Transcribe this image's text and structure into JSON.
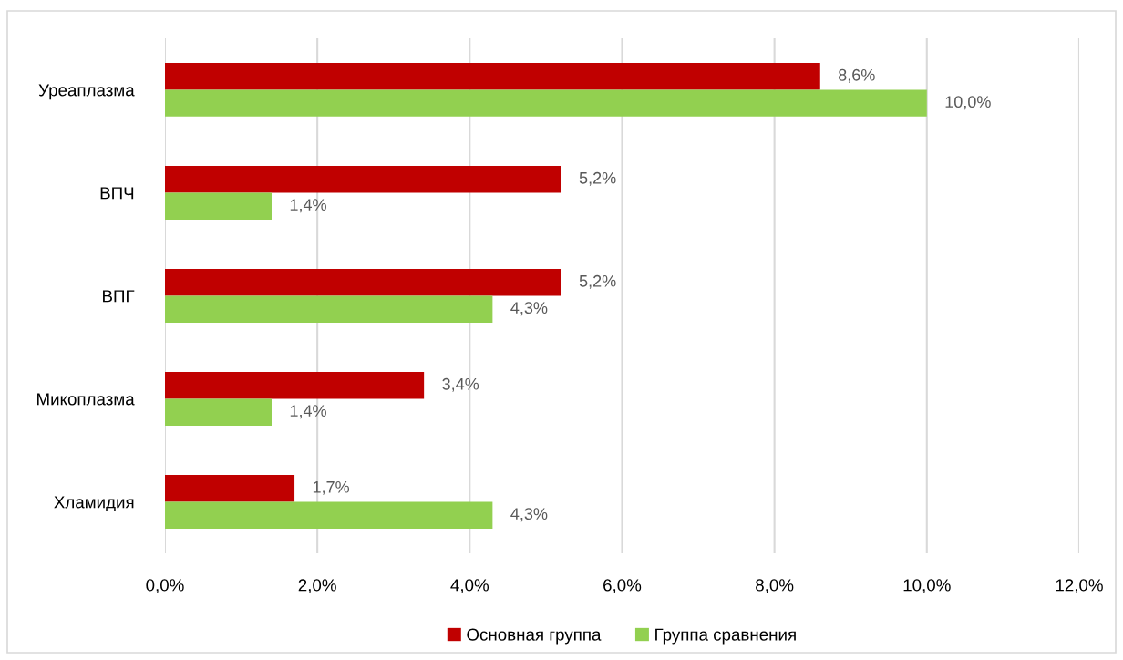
{
  "chart_data": {
    "type": "bar",
    "orientation": "horizontal",
    "categories": [
      "Уреаплазма",
      "ВПЧ",
      "ВПГ",
      "Микоплазма",
      "Хламидия"
    ],
    "series": [
      {
        "name": "Основная группа",
        "color": "#c00000",
        "values": [
          8.6,
          5.2,
          5.2,
          3.4,
          1.7
        ],
        "value_labels": [
          "8,6%",
          "5,2%",
          "5,2%",
          "3,4%",
          "1,7%"
        ]
      },
      {
        "name": "Группа сравнения",
        "color": "#92d050",
        "values": [
          10.0,
          1.4,
          4.3,
          1.4,
          4.3
        ],
        "value_labels": [
          "10,0%",
          "1,4%",
          "4,3%",
          "1,4%",
          "4,3%"
        ]
      }
    ],
    "xlim": [
      0,
      12
    ],
    "xticks": [
      {
        "value": 0,
        "label": "0,0%"
      },
      {
        "value": 2,
        "label": "2,0%"
      },
      {
        "value": 4,
        "label": "4,0%"
      },
      {
        "value": 6,
        "label": "6,0%"
      },
      {
        "value": 8,
        "label": "8,0%"
      },
      {
        "value": 10,
        "label": "10,0%"
      },
      {
        "value": 12,
        "label": "12,0%"
      }
    ],
    "grid": "x",
    "legend": "bottom"
  }
}
